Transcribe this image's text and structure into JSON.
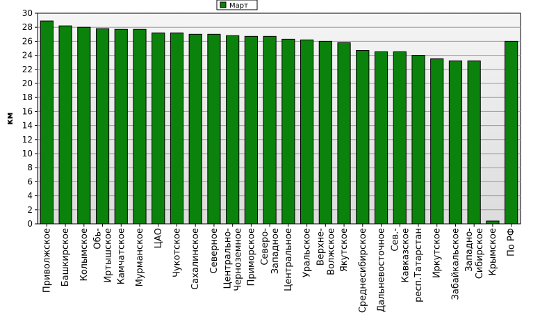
{
  "chart_data": {
    "type": "bar",
    "ylabel": "км",
    "ylim": [
      0,
      30
    ],
    "ytick_step": 2,
    "grid": true,
    "legend": {
      "position": "top-center",
      "entries": [
        "Март"
      ]
    },
    "bar_color": "#0b820b",
    "plot_background_top": "#f5f5f5",
    "plot_background_bottom": "#dcdcdc",
    "categories": [
      "Приволжское",
      "Башкирское",
      "Колымское",
      "Обь-\nИртышское",
      "Камчатское",
      "Мурманское",
      "ЦАО",
      "Чукотское",
      "Сахалинское",
      "Северное",
      "Центрально-\nЧерноземное",
      "Приморское",
      "Северо-\nЗападное",
      "Центральное",
      "Уральское",
      "Верхне-\nВолжское",
      "Якутское",
      "Среднесибирское",
      "Дальневосточное",
      "Сев.-\nКавказское",
      "респ.Татарстан",
      "Иркутское",
      "Забайкальское",
      "Западно-\nСибирское",
      "Крымское",
      "По РФ"
    ],
    "series": [
      {
        "name": "Март",
        "values": [
          28.9,
          28.2,
          28.0,
          27.8,
          27.7,
          27.7,
          27.2,
          27.2,
          27.0,
          27.0,
          26.8,
          26.7,
          26.7,
          26.3,
          26.2,
          26.0,
          25.8,
          24.7,
          24.5,
          24.5,
          24.0,
          23.5,
          23.2,
          23.2,
          0.4,
          26.0
        ]
      }
    ]
  }
}
